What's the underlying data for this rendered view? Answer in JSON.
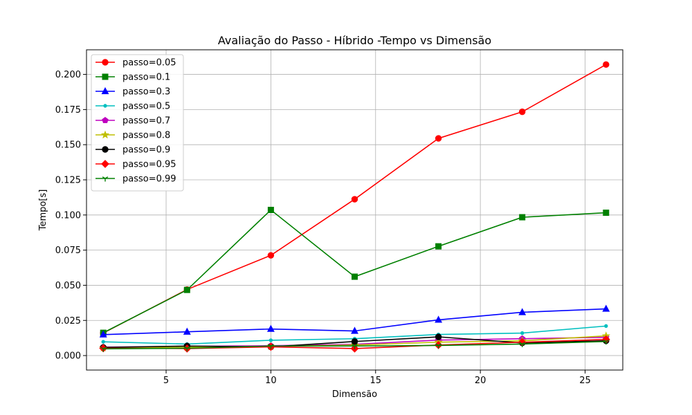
{
  "chart_data": {
    "type": "line",
    "title": "Avaliação do Passo - Híbrido -Tempo vs Dimensão",
    "xlabel": "Dimensão",
    "ylabel": "Tempo[s]",
    "xlim": [
      1.2,
      26.8
    ],
    "ylim": [
      -0.0103,
      0.2175
    ],
    "xticks": [
      5,
      10,
      15,
      20,
      25
    ],
    "yticks": [
      0.0,
      0.025,
      0.05,
      0.075,
      0.1,
      0.125,
      0.15,
      0.175,
      0.2
    ],
    "xtick_labels": [
      "5",
      "10",
      "15",
      "20",
      "25"
    ],
    "ytick_labels": [
      "0.000",
      "0.025",
      "0.050",
      "0.075",
      "0.100",
      "0.125",
      "0.150",
      "0.175",
      "0.200"
    ],
    "grid": true,
    "legend_position": "top-left",
    "x": [
      2,
      6,
      10,
      14,
      18,
      22,
      26
    ],
    "series": [
      {
        "name": "passo=0.05",
        "color": "#ff0000",
        "marker": "circle",
        "values": [
          0.016,
          0.047,
          0.0713,
          0.1112,
          0.1545,
          0.1734,
          0.207
        ]
      },
      {
        "name": "passo=0.1",
        "color": "#008000",
        "marker": "square",
        "values": [
          0.0162,
          0.0467,
          0.1036,
          0.0561,
          0.0777,
          0.0984,
          0.1016
        ]
      },
      {
        "name": "passo=0.3",
        "color": "#0000ff",
        "marker": "triangle",
        "values": [
          0.0149,
          0.0169,
          0.0189,
          0.0175,
          0.0254,
          0.0308,
          0.0332
        ]
      },
      {
        "name": "passo=0.5",
        "color": "#00bfbf",
        "marker": "point",
        "values": [
          0.0098,
          0.0082,
          0.0109,
          0.012,
          0.015,
          0.016,
          0.021
        ]
      },
      {
        "name": "passo=0.7",
        "color": "#bf00bf",
        "marker": "pentagon",
        "values": [
          0.006,
          0.0065,
          0.007,
          0.008,
          0.011,
          0.012,
          0.013
        ]
      },
      {
        "name": "passo=0.8",
        "color": "#bfbf00",
        "marker": "star",
        "values": [
          0.0055,
          0.006,
          0.0065,
          0.0075,
          0.0095,
          0.0105,
          0.014
        ]
      },
      {
        "name": "passo=0.9",
        "color": "#000000",
        "marker": "circle",
        "values": [
          0.0058,
          0.0068,
          0.0062,
          0.01,
          0.0133,
          0.009,
          0.0105
        ]
      },
      {
        "name": "passo=0.95",
        "color": "#ff0000",
        "marker": "diamond",
        "values": [
          0.0052,
          0.005,
          0.0062,
          0.005,
          0.0075,
          0.0095,
          0.0115
        ]
      },
      {
        "name": "passo=0.99",
        "color": "#008000",
        "marker": "tri_down",
        "values": [
          0.0048,
          0.0052,
          0.0068,
          0.0068,
          0.0072,
          0.0082,
          0.01
        ]
      }
    ]
  }
}
